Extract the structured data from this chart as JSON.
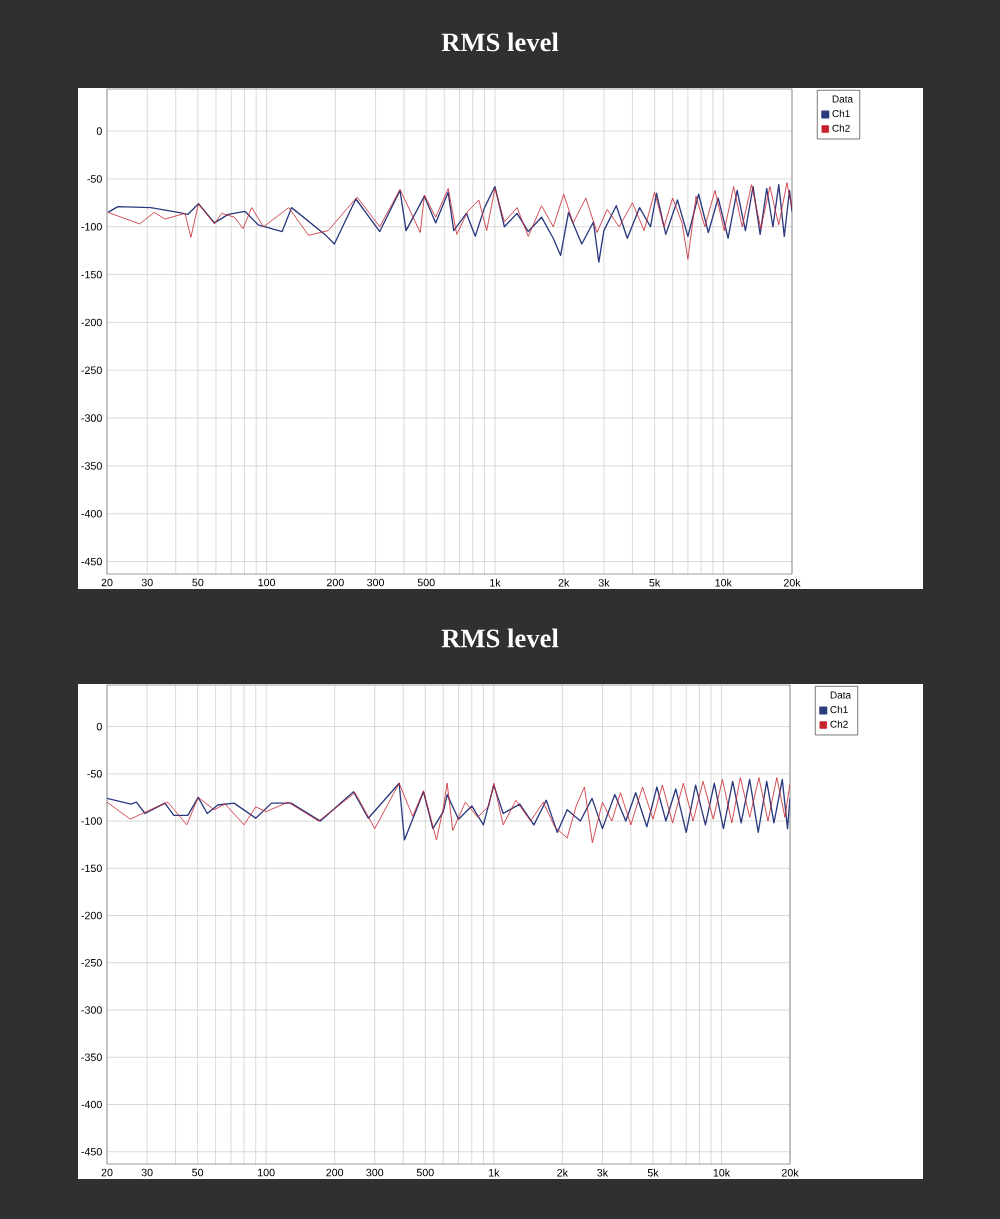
{
  "chart_data": [
    {
      "type": "line",
      "title": "RMS level",
      "legend_title": "Data",
      "legend": "right",
      "log": "x",
      "grid": true,
      "xlim": [
        20,
        20000
      ],
      "ylim": [
        -463,
        44
      ],
      "xticks": [
        20,
        30,
        {
          "value": 40,
          "label": null
        },
        50,
        {
          "value": 60,
          "label": null
        },
        {
          "value": 70,
          "label": null
        },
        {
          "value": 80,
          "label": null
        },
        {
          "value": 90,
          "label": null
        },
        100,
        200,
        300,
        {
          "value": 400,
          "label": null
        },
        500,
        {
          "value": 600,
          "label": null
        },
        {
          "value": 700,
          "label": null
        },
        {
          "value": 800,
          "label": null
        },
        {
          "value": 900,
          "label": null
        },
        {
          "value": 1000,
          "label": "1k"
        },
        {
          "value": 2000,
          "label": "2k"
        },
        {
          "value": 3000,
          "label": "3k"
        },
        {
          "value": 4000,
          "label": null
        },
        {
          "value": 5000,
          "label": "5k"
        },
        {
          "value": 6000,
          "label": null
        },
        {
          "value": 7000,
          "label": null
        },
        {
          "value": 8000,
          "label": null
        },
        {
          "value": 9000,
          "label": null
        },
        {
          "value": 10000,
          "label": "10k"
        },
        {
          "value": 20000,
          "label": "20k"
        }
      ],
      "yticks": [
        0,
        -50,
        -100,
        -150,
        -200,
        -250,
        -300,
        -350,
        -400,
        -450
      ],
      "series": [
        {
          "name": "Ch1",
          "color": "#2b3a7e",
          "x": [
            20.2,
            22.3,
            31.1,
            41,
            45.3,
            50.3,
            59.1,
            67.9,
            80.5,
            91.8,
            117,
            128.6,
            180,
            198,
            246,
            313,
            384,
            408,
            491,
            550,
            624,
            660,
            750,
            820,
            900,
            1000,
            1100,
            1250,
            1400,
            1600,
            1800,
            1940,
            2100,
            2400,
            2700,
            2850,
            3000,
            3400,
            3800,
            4300,
            4800,
            5100,
            5600,
            6300,
            7000,
            7800,
            8600,
            9500,
            10500,
            11500,
            12500,
            13500,
            14500,
            15500,
            16500,
            17500,
            18500,
            19500,
            20000
          ],
          "values": [
            -85,
            -79,
            -80,
            -85,
            -87,
            -76,
            -96,
            -87,
            -84,
            -98,
            -105,
            -80,
            -108,
            -118,
            -71,
            -105,
            -62,
            -104,
            -68,
            -96,
            -64,
            -104,
            -86,
            -110,
            -80,
            -58,
            -100,
            -86,
            -105,
            -90,
            -112,
            -130,
            -85,
            -118,
            -95,
            -137,
            -104,
            -78,
            -112,
            -80,
            -100,
            -65,
            -108,
            -72,
            -110,
            -66,
            -106,
            -70,
            -112,
            -62,
            -104,
            -58,
            -108,
            -60,
            -100,
            -56,
            -110,
            -62,
            -84
          ]
        },
        {
          "name": "Ch2",
          "color": "#c8232c",
          "x": [
            20.2,
            27.8,
            32.2,
            35.9,
            43.9,
            46.6,
            50.3,
            59.1,
            63.6,
            72.3,
            78.9,
            86,
            96.9,
            125,
            152.7,
            186,
            249,
            313,
            384,
            471,
            491,
            550,
            624,
            680,
            760,
            850,
            920,
            1000,
            1100,
            1250,
            1400,
            1600,
            1800,
            2000,
            2200,
            2500,
            2800,
            3100,
            3500,
            4000,
            4500,
            5000,
            5500,
            6000,
            6600,
            7000,
            7600,
            8300,
            9200,
            10100,
            11100,
            12100,
            13300,
            14600,
            16000,
            17500,
            19000,
            20000
          ],
          "values": [
            -85,
            -97,
            -85,
            -92,
            -86,
            -111,
            -76,
            -97,
            -86,
            -90,
            -102,
            -80,
            -100,
            -80,
            -109,
            -104,
            -69,
            -100,
            -61,
            -106,
            -67,
            -90,
            -60,
            -108,
            -84,
            -72,
            -104,
            -60,
            -95,
            -80,
            -110,
            -78,
            -100,
            -66,
            -96,
            -70,
            -106,
            -82,
            -100,
            -75,
            -104,
            -64,
            -100,
            -70,
            -96,
            -134,
            -68,
            -100,
            -62,
            -104,
            -58,
            -100,
            -56,
            -102,
            -58,
            -98,
            -54,
            -80
          ]
        }
      ]
    },
    {
      "type": "line",
      "title": "RMS level",
      "legend_title": "Data",
      "legend": "right",
      "log": "x",
      "grid": true,
      "xlim": [
        20,
        20000
      ],
      "ylim": [
        -463,
        44
      ],
      "xticks": [
        20,
        30,
        {
          "value": 40,
          "label": null
        },
        50,
        {
          "value": 60,
          "label": null
        },
        {
          "value": 70,
          "label": null
        },
        {
          "value": 80,
          "label": null
        },
        {
          "value": 90,
          "label": null
        },
        100,
        200,
        300,
        {
          "value": 400,
          "label": null
        },
        500,
        {
          "value": 600,
          "label": null
        },
        {
          "value": 700,
          "label": null
        },
        {
          "value": 800,
          "label": null
        },
        {
          "value": 900,
          "label": null
        },
        {
          "value": 1000,
          "label": "1k"
        },
        {
          "value": 2000,
          "label": "2k"
        },
        {
          "value": 3000,
          "label": "3k"
        },
        {
          "value": 4000,
          "label": null
        },
        {
          "value": 5000,
          "label": "5k"
        },
        {
          "value": 6000,
          "label": null
        },
        {
          "value": 7000,
          "label": null
        },
        {
          "value": 8000,
          "label": null
        },
        {
          "value": 9000,
          "label": null
        },
        {
          "value": 10000,
          "label": "10k"
        },
        {
          "value": 20000,
          "label": "20k"
        }
      ],
      "yticks": [
        0,
        -50,
        -100,
        -150,
        -200,
        -250,
        -300,
        -350,
        -400,
        -450
      ],
      "series": [
        {
          "name": "Ch1",
          "color": "#2b3a7e",
          "x": [
            20,
            25.5,
            26.9,
            29.4,
            35.9,
            39.3,
            45.3,
            50.3,
            55.1,
            61.3,
            72.3,
            90,
            105.6,
            128.6,
            173,
            242,
            281,
            384,
            405,
            491,
            540,
            600,
            624,
            700,
            800,
            900,
            1000,
            1100,
            1300,
            1500,
            1700,
            1900,
            2100,
            2400,
            2700,
            3000,
            3400,
            3800,
            4200,
            4700,
            5200,
            5700,
            6300,
            7000,
            7700,
            8500,
            9300,
            10200,
            11200,
            12200,
            13300,
            14500,
            15800,
            17000,
            18500,
            19500,
            20000
          ],
          "values": [
            -76,
            -82,
            -80,
            -92,
            -81,
            -94,
            -94,
            -75,
            -92,
            -83,
            -81,
            -97,
            -81,
            -81,
            -100,
            -69,
            -97,
            -60,
            -120,
            -69,
            -108,
            -90,
            -72,
            -98,
            -84,
            -104,
            -62,
            -92,
            -82,
            -104,
            -78,
            -112,
            -88,
            -100,
            -76,
            -108,
            -72,
            -100,
            -70,
            -106,
            -64,
            -100,
            -66,
            -112,
            -62,
            -104,
            -60,
            -108,
            -58,
            -102,
            -56,
            -112,
            -58,
            -102,
            -56,
            -108,
            -76
          ]
        },
        {
          "name": "Ch2",
          "color": "#c8232c",
          "x": [
            20,
            25.3,
            33,
            37,
            44.8,
            50.3,
            59,
            66,
            80,
            90,
            100,
            125,
            170,
            246,
            300,
            384,
            440,
            491,
            560,
            600,
            624,
            660,
            750,
            850,
            950,
            1000,
            1100,
            1250,
            1450,
            1650,
            1850,
            2100,
            2300,
            2500,
            2710,
            3000,
            3300,
            3600,
            4000,
            4500,
            5000,
            5500,
            6100,
            6800,
            7500,
            8300,
            9200,
            10100,
            11100,
            12100,
            13300,
            14600,
            16000,
            17500,
            19000,
            20000
          ],
          "values": [
            -80,
            -98,
            -85,
            -80,
            -104,
            -75,
            -88,
            -82,
            -104,
            -85,
            -90,
            -80,
            -100,
            -70,
            -108,
            -60,
            -95,
            -68,
            -120,
            -86,
            -60,
            -110,
            -80,
            -96,
            -84,
            -60,
            -104,
            -78,
            -100,
            -80,
            -106,
            -118,
            -84,
            -64,
            -123,
            -80,
            -100,
            -70,
            -104,
            -64,
            -98,
            -62,
            -102,
            -60,
            -100,
            -58,
            -98,
            -56,
            -102,
            -54,
            -96,
            -54,
            -100,
            -54,
            -96,
            -60
          ]
        }
      ]
    }
  ]
}
